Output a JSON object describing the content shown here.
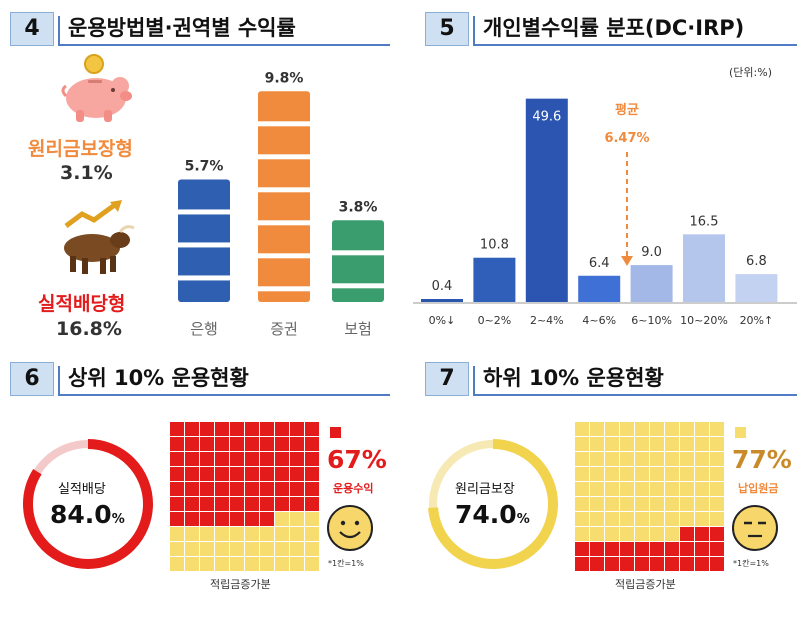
{
  "panel4": {
    "num": "4",
    "title": "운용방법별·권역별 수익률",
    "principal_label": "원리금보장형",
    "principal_value": "3.1%",
    "invest_label": "실적배당형",
    "invest_value": "16.8%"
  },
  "panel5": {
    "num": "5",
    "title": "개인별수익률 분포(DC·IRP)",
    "unit": "(단위:%)",
    "avg_label": "평균",
    "avg_value": "6.47%"
  },
  "panel6": {
    "num": "6",
    "title": "상위 10% 운용현황",
    "ring_label": "실적배당",
    "ring_value": "84.0",
    "ring_unit": "%",
    "ring_fraction": 0.84,
    "legend_pct": "67%",
    "legend_label": "운용수익",
    "grid_caption": "적립금증가분",
    "grid_note": "*1칸=1%",
    "filled_cells": 67
  },
  "panel7": {
    "num": "7",
    "title": "하위 10% 운용현황",
    "ring_label": "원리금보장",
    "ring_value": "74.0",
    "ring_unit": "%",
    "ring_fraction": 0.74,
    "legend_pct": "77%",
    "legend_label": "납입원금",
    "grid_caption": "적립금증가분",
    "grid_note": "*1칸=1%",
    "filled_cells": 77
  },
  "colors": {
    "bank": "#2f5fb0",
    "securities": "#f08a3c",
    "insurance": "#3a9d6e",
    "red": "#e31b1b",
    "yellow": "#f7dc6f",
    "orange_text": "#f08a3c",
    "dist_bar": "#3c67bf"
  },
  "chart_data": [
    {
      "type": "bar",
      "categories": [
        "은행",
        "증권",
        "보험"
      ],
      "values": [
        5.7,
        9.8,
        3.8
      ],
      "value_labels": [
        "5.7%",
        "9.8%",
        "3.8%"
      ],
      "title": "운용방법별·권역별 수익률"
    },
    {
      "type": "bar",
      "categories": [
        "0%↓",
        "0~2%",
        "2~4%",
        "4~6%",
        "6~10%",
        "10~20%",
        "20%↑"
      ],
      "values": [
        0.4,
        10.8,
        49.6,
        6.4,
        9.0,
        16.5,
        6.8
      ],
      "value_labels": [
        "0.4",
        "10.8",
        "49.6",
        "6.4",
        "9.0",
        "16.5",
        "6.8"
      ],
      "title": "개인별수익률 분포(DC·IRP)",
      "unit": "(단위:%)",
      "average": 6.47
    }
  ]
}
